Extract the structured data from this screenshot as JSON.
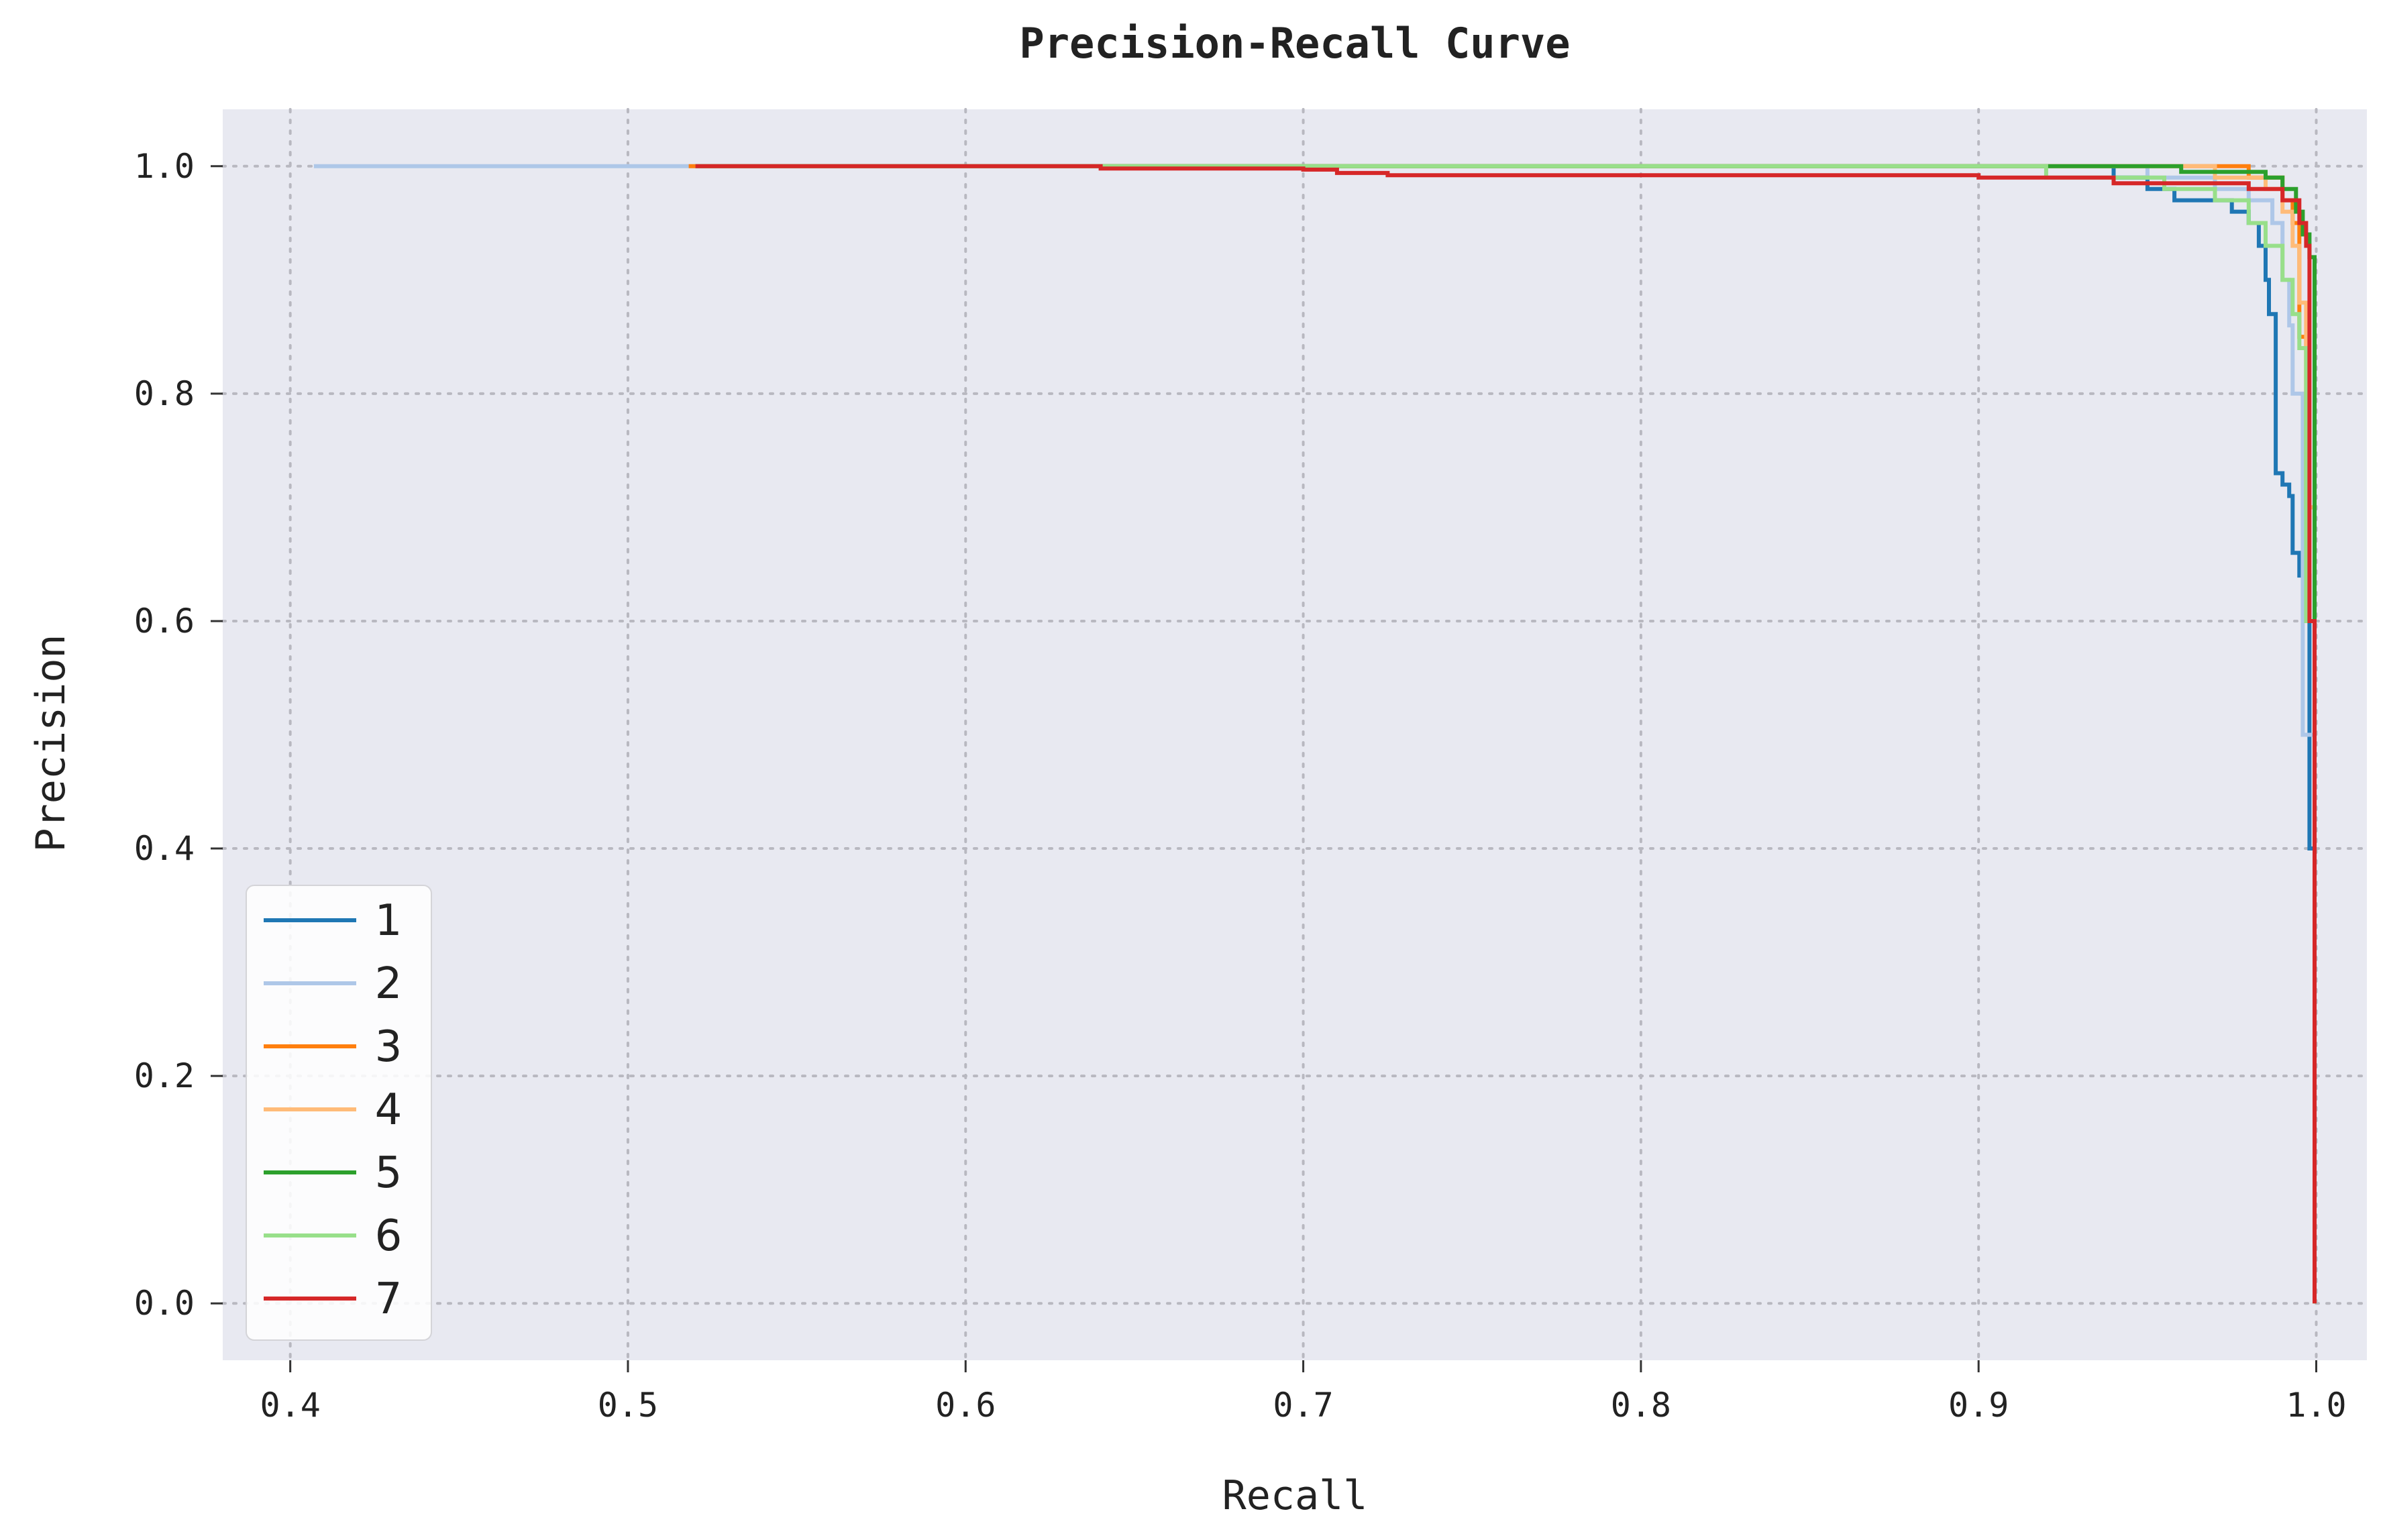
{
  "chart_data": {
    "type": "line",
    "title": "Precision-Recall Curve",
    "xlabel": "Recall",
    "ylabel": "Precision",
    "xlim": [
      0.38,
      1.015
    ],
    "ylim": [
      -0.05,
      1.05
    ],
    "xticks": [
      0.4,
      0.5,
      0.6,
      0.7,
      0.8,
      0.9,
      1.0
    ],
    "xtick_labels": [
      "0.4",
      "0.5",
      "0.6",
      "0.7",
      "0.8",
      "0.9",
      "1.0"
    ],
    "yticks": [
      0.0,
      0.2,
      0.4,
      0.6,
      0.8,
      1.0
    ],
    "ytick_labels": [
      "0.0",
      "0.2",
      "0.4",
      "0.6",
      "0.8",
      "1.0"
    ],
    "grid": true,
    "legend_position": "lower-left",
    "colors": {
      "plot_background": "#e8e9f1",
      "grid": "#b8b8c0"
    },
    "series": [
      {
        "name": "1",
        "color": "#1f77b4",
        "points": [
          [
            0.52,
            1.0
          ],
          [
            0.94,
            0.99
          ],
          [
            0.95,
            0.98
          ],
          [
            0.958,
            0.97
          ],
          [
            0.975,
            0.96
          ],
          [
            0.98,
            0.95
          ],
          [
            0.983,
            0.93
          ],
          [
            0.985,
            0.9
          ],
          [
            0.986,
            0.87
          ],
          [
            0.988,
            0.85
          ],
          [
            0.988,
            0.73
          ],
          [
            0.99,
            0.72
          ],
          [
            0.992,
            0.71
          ],
          [
            0.993,
            0.66
          ],
          [
            0.995,
            0.64
          ],
          [
            0.998,
            0.4
          ],
          [
            0.9995,
            0.0
          ]
        ]
      },
      {
        "name": "2",
        "color": "#aec7e8",
        "points": [
          [
            0.407,
            1.0
          ],
          [
            0.9,
            1.0
          ],
          [
            0.95,
            0.99
          ],
          [
            0.97,
            0.98
          ],
          [
            0.98,
            0.97
          ],
          [
            0.987,
            0.95
          ],
          [
            0.99,
            0.9
          ],
          [
            0.992,
            0.86
          ],
          [
            0.993,
            0.8
          ],
          [
            0.996,
            0.5
          ],
          [
            0.9995,
            0.0
          ]
        ]
      },
      {
        "name": "3",
        "color": "#ff7f0e",
        "points": [
          [
            0.518,
            1.0
          ],
          [
            0.96,
            1.0
          ],
          [
            0.98,
            0.99
          ],
          [
            0.99,
            0.97
          ],
          [
            0.993,
            0.95
          ],
          [
            0.995,
            0.85
          ],
          [
            0.997,
            0.7
          ],
          [
            0.9995,
            0.0
          ]
        ]
      },
      {
        "name": "4",
        "color": "#ffbb78",
        "points": [
          [
            0.52,
            1.0
          ],
          [
            0.94,
            1.0
          ],
          [
            0.97,
            0.99
          ],
          [
            0.985,
            0.98
          ],
          [
            0.99,
            0.96
          ],
          [
            0.993,
            0.93
          ],
          [
            0.995,
            0.88
          ],
          [
            0.997,
            0.7
          ],
          [
            0.9995,
            0.0
          ]
        ]
      },
      {
        "name": "5",
        "color": "#2ca02c",
        "points": [
          [
            0.52,
            1.0
          ],
          [
            0.89,
            1.0
          ],
          [
            0.95,
            1.0
          ],
          [
            0.96,
            0.995
          ],
          [
            0.985,
            0.99
          ],
          [
            0.99,
            0.98
          ],
          [
            0.994,
            0.96
          ],
          [
            0.996,
            0.94
          ],
          [
            0.998,
            0.92
          ],
          [
            0.9995,
            0.0
          ]
        ]
      },
      {
        "name": "6",
        "color": "#98df8a",
        "points": [
          [
            0.52,
            1.0
          ],
          [
            0.92,
            0.99
          ],
          [
            0.955,
            0.98
          ],
          [
            0.97,
            0.97
          ],
          [
            0.98,
            0.95
          ],
          [
            0.985,
            0.93
          ],
          [
            0.99,
            0.9
          ],
          [
            0.993,
            0.87
          ],
          [
            0.995,
            0.84
          ],
          [
            0.997,
            0.6
          ],
          [
            0.9995,
            0.0
          ]
        ]
      },
      {
        "name": "7",
        "color": "#d62728",
        "points": [
          [
            0.52,
            1.0
          ],
          [
            0.635,
            1.0
          ],
          [
            0.64,
            0.998
          ],
          [
            0.7,
            0.997
          ],
          [
            0.71,
            0.994
          ],
          [
            0.725,
            0.992
          ],
          [
            0.9,
            0.99
          ],
          [
            0.94,
            0.985
          ],
          [
            0.98,
            0.98
          ],
          [
            0.99,
            0.97
          ],
          [
            0.995,
            0.95
          ],
          [
            0.997,
            0.93
          ],
          [
            0.998,
            0.6
          ],
          [
            0.9995,
            0.0
          ]
        ]
      }
    ]
  }
}
